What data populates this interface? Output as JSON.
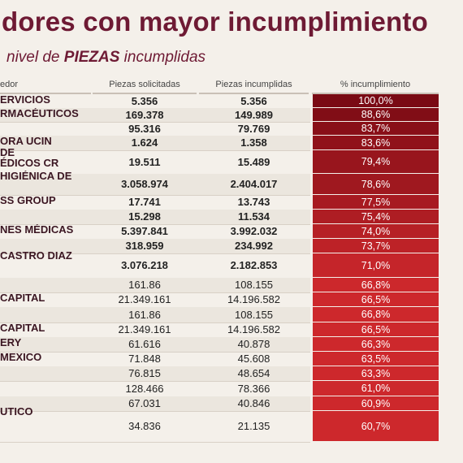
{
  "title": "dores con mayor incumplimiento",
  "subtitle_pre": "nivel de ",
  "subtitle_bold": "PIEZAS",
  "subtitle_post": " incumplidas",
  "headers": [
    "edor",
    "Piezas solicitadas",
    "Piezas incumplidas",
    "% incumplimiento"
  ],
  "colors": {
    "title": "#6e1a34",
    "bar_dark": "#7a0a14",
    "bar_light": "#cf2a2e"
  },
  "rows": [
    {
      "name": "ERVICIOS",
      "name2": "",
      "solicitadas": "5.356",
      "incumplidas": "5.356",
      "pct": "100,0%",
      "bold": true
    },
    {
      "name": "RMACÉUTICOS",
      "name2": "",
      "solicitadas": "169.378",
      "incumplidas": "149.989",
      "pct": "88,6%",
      "bold": true
    },
    {
      "name": "",
      "name2": "",
      "solicitadas": "95.316",
      "incumplidas": "79.769",
      "pct": "83,7%",
      "bold": true
    },
    {
      "name": "ORA UCIN",
      "name2": "",
      "solicitadas": "1.624",
      "incumplidas": "1.358",
      "pct": "83,6%",
      "bold": true
    },
    {
      "name": "DE",
      "name2": "ÉDICOS CR",
      "solicitadas": "19.511",
      "incumplidas": "15.489",
      "pct": "79,4%",
      "bold": true
    },
    {
      "name": "HIGIÉNICA DE",
      "name2": "",
      "solicitadas": "3.058.974",
      "incumplidas": "2.404.017",
      "pct": "78,6%",
      "bold": true
    },
    {
      "name": "SS GROUP",
      "name2": "",
      "solicitadas": "17.741",
      "incumplidas": "13.743",
      "pct": "77,5%",
      "bold": true
    },
    {
      "name": "",
      "name2": "",
      "solicitadas": "15.298",
      "incumplidas": "11.534",
      "pct": "75,4%",
      "bold": true
    },
    {
      "name": "NES MÉDICAS",
      "name2": "",
      "solicitadas": "5.397.841",
      "incumplidas": "3.992.032",
      "pct": "74,0%",
      "bold": true
    },
    {
      "name": "",
      "name2": "",
      "solicitadas": "318.959",
      "incumplidas": "234.992",
      "pct": "73,7%",
      "bold": true
    },
    {
      "name": "CASTRO DIAZ",
      "name2": "",
      "solicitadas": "3.076.218",
      "incumplidas": "2.182.853",
      "pct": "71,0%",
      "bold": true
    },
    {
      "name": "",
      "name2": "",
      "solicitadas": "161.86",
      "incumplidas": "108.155",
      "pct": "66,8%",
      "bold": false
    },
    {
      "name": "CAPITAL",
      "name2": "",
      "solicitadas": "21.349.161",
      "incumplidas": "14.196.582",
      "pct": "66,5%",
      "bold": false
    },
    {
      "name": "",
      "name2": "",
      "solicitadas": "161.86",
      "incumplidas": "108.155",
      "pct": "66,8%",
      "bold": false
    },
    {
      "name": "CAPITAL",
      "name2": "",
      "solicitadas": "21.349.161",
      "incumplidas": "14.196.582",
      "pct": "66,5%",
      "bold": false
    },
    {
      "name": "ERY",
      "name2": "",
      "solicitadas": "61.616",
      "incumplidas": "40.878",
      "pct": "66,3%",
      "bold": false
    },
    {
      "name": "MEXICO",
      "name2": "",
      "solicitadas": "71.848",
      "incumplidas": "45.608",
      "pct": "63,5%",
      "bold": false
    },
    {
      "name": "",
      "name2": "",
      "solicitadas": "76.815",
      "incumplidas": "48.654",
      "pct": "63,3%",
      "bold": false
    },
    {
      "name": "",
      "name2": "",
      "solicitadas": "128.466",
      "incumplidas": "78.366",
      "pct": "61,0%",
      "bold": false
    },
    {
      "name": "",
      "name2": "",
      "solicitadas": "67.031",
      "incumplidas": "40.846",
      "pct": "60,9%",
      "bold": false
    },
    {
      "name": "UTICO",
      "name2": "",
      "solicitadas": "34.836",
      "incumplidas": "21.135",
      "pct": "60,7%",
      "bold": false
    }
  ]
}
